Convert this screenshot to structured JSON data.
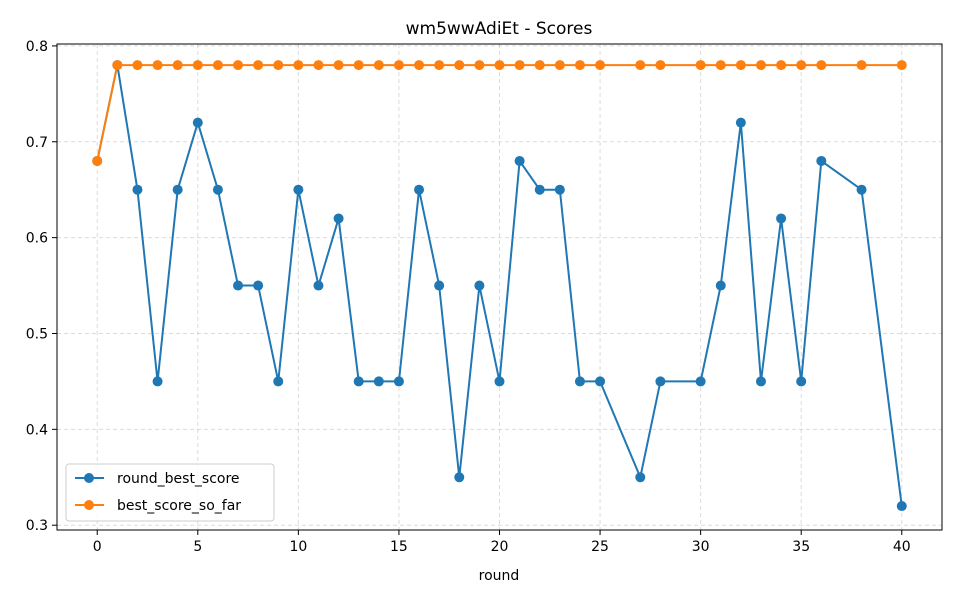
{
  "chart_data": {
    "type": "line",
    "title": "wm5wwAdiEt - Scores",
    "xlabel": "round",
    "ylabel": "",
    "xlim": [
      -2,
      42
    ],
    "ylim": [
      0.295,
      0.802
    ],
    "xticks": [
      0,
      5,
      10,
      15,
      20,
      25,
      30,
      35,
      40
    ],
    "yticks": [
      0.3,
      0.4,
      0.5,
      0.6,
      0.7,
      0.8
    ],
    "xtick_labels": [
      "0",
      "5",
      "10",
      "15",
      "20",
      "25",
      "30",
      "35",
      "40"
    ],
    "ytick_labels": [
      "0.3",
      "0.4",
      "0.5",
      "0.6",
      "0.7",
      "0.8"
    ],
    "grid": true,
    "legend_position": "lower-left",
    "series": [
      {
        "name": "round_best_score",
        "color": "#1f77b4",
        "x": [
          0,
          1,
          2,
          3,
          4,
          5,
          6,
          7,
          8,
          9,
          10,
          11,
          12,
          13,
          14,
          15,
          16,
          17,
          18,
          19,
          20,
          21,
          22,
          23,
          24,
          25,
          27,
          28,
          30,
          31,
          32,
          33,
          34,
          35,
          36,
          38,
          40
        ],
        "y": [
          0.68,
          0.78,
          0.65,
          0.45,
          0.65,
          0.72,
          0.65,
          0.55,
          0.55,
          0.45,
          0.65,
          0.55,
          0.62,
          0.45,
          0.45,
          0.45,
          0.65,
          0.55,
          0.35,
          0.55,
          0.45,
          0.68,
          0.65,
          0.65,
          0.45,
          0.45,
          0.35,
          0.45,
          0.45,
          0.55,
          0.72,
          0.45,
          0.62,
          0.45,
          0.68,
          0.65,
          0.32
        ]
      },
      {
        "name": "best_score_so_far",
        "color": "#ff7f0e",
        "x": [
          0,
          1,
          2,
          3,
          4,
          5,
          6,
          7,
          8,
          9,
          10,
          11,
          12,
          13,
          14,
          15,
          16,
          17,
          18,
          19,
          20,
          21,
          22,
          23,
          24,
          25,
          27,
          28,
          30,
          31,
          32,
          33,
          34,
          35,
          36,
          38,
          40
        ],
        "y": [
          0.68,
          0.78,
          0.78,
          0.78,
          0.78,
          0.78,
          0.78,
          0.78,
          0.78,
          0.78,
          0.78,
          0.78,
          0.78,
          0.78,
          0.78,
          0.78,
          0.78,
          0.78,
          0.78,
          0.78,
          0.78,
          0.78,
          0.78,
          0.78,
          0.78,
          0.78,
          0.78,
          0.78,
          0.78,
          0.78,
          0.78,
          0.78,
          0.78,
          0.78,
          0.78,
          0.78,
          0.78
        ]
      }
    ]
  }
}
